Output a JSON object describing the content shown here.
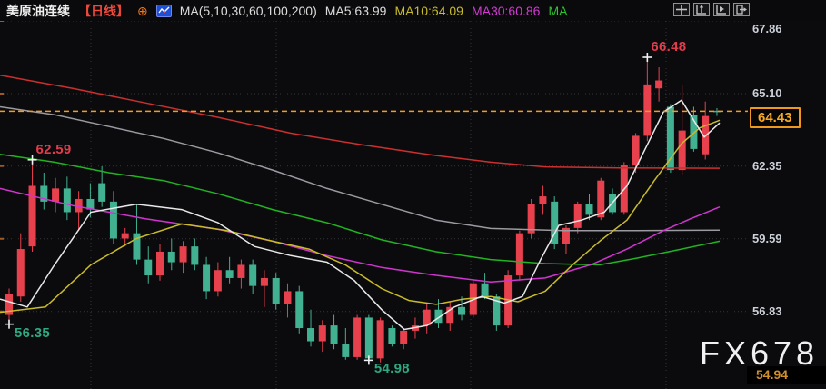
{
  "header": {
    "symbol": "美原油连续",
    "period_label": "【日线】",
    "add_icon_glyph": "⊕",
    "indicator_icon": "line-chart-icon",
    "ma_settings_label": "MA(5,10,30,60,100,200)",
    "ma5_label": "MA5:63.99",
    "ma10_label": "MA10:64.09",
    "ma30_label": "MA30:60.86",
    "ma60_label": "MA"
  },
  "toolbar": {
    "icons": [
      "crosshair",
      "axis-scale-up",
      "axis-play",
      "pane-shift-right"
    ]
  },
  "axis": {
    "ticks": [
      {
        "label": "67.86",
        "price": 67.86
      },
      {
        "label": "65.10",
        "price": 65.1
      },
      {
        "label": "62.35",
        "price": 62.35
      },
      {
        "label": "59.59",
        "price": 59.59
      },
      {
        "label": "56.83",
        "price": 56.83
      }
    ],
    "current": {
      "label": "64.43",
      "price": 64.43
    },
    "bottom_label": "54.94"
  },
  "watermark": {
    "text": "FX678"
  },
  "chart_data": {
    "type": "candlestick",
    "title": "美原油连续",
    "interval": "日线",
    "ohlc_format": [
      "open",
      "high",
      "low",
      "close"
    ],
    "up_color": "#e8414e",
    "down_color": "#41b192",
    "current_price": 64.43,
    "y_axis_ticks": [
      67.86,
      65.1,
      62.35,
      59.59,
      56.83,
      54.94
    ],
    "grid": {
      "h_prices": [
        67.86,
        65.1,
        62.35,
        59.59,
        56.83
      ],
      "v_x": [
        100,
        304,
        518,
        733
      ]
    },
    "candles": [
      [
        56.7,
        57.7,
        56.35,
        57.5
      ],
      [
        57.4,
        59.8,
        57.2,
        59.2
      ],
      [
        59.3,
        62.59,
        59.1,
        61.6
      ],
      [
        61.6,
        62.1,
        60.7,
        61.0
      ],
      [
        61.0,
        61.9,
        60.6,
        61.5
      ],
      [
        61.5,
        61.95,
        60.3,
        60.6
      ],
      [
        60.6,
        61.4,
        59.9,
        61.1
      ],
      [
        61.1,
        61.7,
        60.4,
        60.7
      ],
      [
        61.7,
        62.34,
        60.8,
        61.0
      ],
      [
        61.0,
        61.4,
        59.4,
        59.6
      ],
      [
        59.6,
        60.0,
        59.3,
        59.8
      ],
      [
        59.8,
        60.9,
        58.6,
        58.8
      ],
      [
        58.8,
        59.3,
        57.9,
        58.2
      ],
      [
        58.2,
        59.4,
        58.0,
        59.1
      ],
      [
        59.1,
        59.6,
        58.4,
        58.7
      ],
      [
        58.7,
        59.5,
        58.3,
        59.3
      ],
      [
        59.3,
        59.6,
        58.4,
        58.6
      ],
      [
        58.6,
        58.9,
        57.3,
        57.6
      ],
      [
        57.6,
        58.7,
        57.4,
        58.4
      ],
      [
        58.4,
        58.9,
        57.9,
        58.1
      ],
      [
        58.1,
        58.8,
        57.7,
        58.6
      ],
      [
        58.6,
        58.8,
        57.5,
        57.8
      ],
      [
        57.8,
        58.4,
        57.0,
        58.1
      ],
      [
        58.1,
        58.3,
        56.9,
        57.1
      ],
      [
        57.1,
        57.9,
        56.6,
        57.6
      ],
      [
        57.6,
        57.8,
        56.0,
        56.2
      ],
      [
        56.2,
        56.9,
        55.5,
        55.7
      ],
      [
        55.7,
        56.5,
        55.3,
        56.3
      ],
      [
        56.3,
        56.7,
        55.4,
        55.6
      ],
      [
        55.6,
        56.2,
        55.0,
        55.1
      ],
      [
        55.1,
        56.7,
        55.0,
        56.6
      ],
      [
        56.6,
        56.7,
        54.98,
        55.05
      ],
      [
        55.05,
        56.6,
        54.9,
        56.5
      ],
      [
        56.2,
        56.3,
        55.5,
        55.6
      ],
      [
        55.6,
        56.2,
        55.4,
        56.1
      ],
      [
        56.1,
        56.6,
        55.8,
        56.3
      ],
      [
        56.3,
        57.1,
        56.0,
        56.9
      ],
      [
        56.9,
        57.3,
        56.2,
        56.4
      ],
      [
        56.4,
        57.2,
        56.1,
        57.0
      ],
      [
        57.0,
        57.4,
        56.5,
        56.7
      ],
      [
        56.7,
        58.0,
        56.6,
        57.9
      ],
      [
        57.9,
        58.3,
        57.3,
        57.4
      ],
      [
        57.4,
        57.5,
        56.1,
        56.3
      ],
      [
        56.3,
        58.4,
        56.2,
        58.2
      ],
      [
        58.2,
        59.9,
        58.0,
        59.8
      ],
      [
        59.8,
        61.1,
        59.6,
        60.9
      ],
      [
        60.9,
        61.6,
        60.5,
        61.2
      ],
      [
        61.0,
        61.2,
        59.2,
        59.4
      ],
      [
        59.4,
        60.1,
        59.0,
        60.0
      ],
      [
        60.0,
        61.0,
        59.8,
        60.9
      ],
      [
        60.9,
        61.3,
        60.3,
        60.5
      ],
      [
        60.4,
        61.9,
        60.3,
        61.8
      ],
      [
        61.3,
        61.5,
        60.5,
        60.6
      ],
      [
        60.6,
        62.5,
        60.5,
        62.4
      ],
      [
        62.4,
        63.6,
        62.1,
        63.5
      ],
      [
        63.5,
        66.48,
        63.3,
        65.45
      ],
      [
        65.3,
        66.1,
        64.8,
        65.6
      ],
      [
        64.6,
        64.7,
        62.1,
        62.2
      ],
      [
        62.2,
        65.45,
        62.0,
        63.7
      ],
      [
        64.3,
        64.6,
        62.9,
        63.0
      ],
      [
        62.8,
        64.8,
        62.6,
        64.25
      ],
      [
        64.45,
        64.55,
        64.25,
        64.43
      ]
    ],
    "ma_lines": [
      {
        "name": "MA200",
        "color": "#cc2f2f",
        "points": [
          [
            0,
            65.8
          ],
          [
            80,
            65.3
          ],
          [
            160,
            64.75
          ],
          [
            240,
            64.2
          ],
          [
            320,
            63.6
          ],
          [
            400,
            63.15
          ],
          [
            480,
            62.75
          ],
          [
            540,
            62.5
          ],
          [
            600,
            62.32
          ],
          [
            680,
            62.28
          ],
          [
            792,
            62.27
          ]
        ]
      },
      {
        "name": "MA100",
        "color": "#9a9aa0",
        "points": [
          [
            0,
            64.6
          ],
          [
            60,
            64.3
          ],
          [
            120,
            63.85
          ],
          [
            180,
            63.4
          ],
          [
            240,
            62.85
          ],
          [
            300,
            62.2
          ],
          [
            360,
            61.5
          ],
          [
            420,
            60.9
          ],
          [
            480,
            60.3
          ],
          [
            540,
            59.98
          ],
          [
            620,
            59.9
          ],
          [
            700,
            59.9
          ],
          [
            792,
            59.92
          ]
        ]
      },
      {
        "name": "MA60",
        "color": "#22b322",
        "points": [
          [
            0,
            62.8
          ],
          [
            60,
            62.5
          ],
          [
            120,
            62.1
          ],
          [
            180,
            61.8
          ],
          [
            240,
            61.3
          ],
          [
            300,
            60.7
          ],
          [
            360,
            60.2
          ],
          [
            420,
            59.55
          ],
          [
            480,
            59.1
          ],
          [
            540,
            58.8
          ],
          [
            600,
            58.65
          ],
          [
            660,
            58.6
          ],
          [
            700,
            58.85
          ],
          [
            750,
            59.2
          ],
          [
            792,
            59.5
          ]
        ]
      },
      {
        "name": "MA30",
        "color": "#cf35cf",
        "points": [
          [
            0,
            61.5
          ],
          [
            80,
            60.85
          ],
          [
            160,
            60.35
          ],
          [
            240,
            59.95
          ],
          [
            300,
            59.5
          ],
          [
            360,
            58.95
          ],
          [
            420,
            58.5
          ],
          [
            480,
            58.2
          ],
          [
            540,
            57.95
          ],
          [
            600,
            58.1
          ],
          [
            650,
            58.6
          ],
          [
            690,
            59.2
          ],
          [
            730,
            59.9
          ],
          [
            760,
            60.35
          ],
          [
            792,
            60.8
          ]
        ]
      },
      {
        "name": "MA10",
        "color": "#c9bb2a",
        "points": [
          [
            0,
            56.8
          ],
          [
            50,
            57.0
          ],
          [
            100,
            58.6
          ],
          [
            150,
            59.6
          ],
          [
            200,
            60.15
          ],
          [
            250,
            59.9
          ],
          [
            300,
            59.5
          ],
          [
            340,
            59.2
          ],
          [
            380,
            58.6
          ],
          [
            420,
            57.7
          ],
          [
            450,
            57.25
          ],
          [
            480,
            57.1
          ],
          [
            510,
            57.3
          ],
          [
            540,
            57.4
          ],
          [
            570,
            57.2
          ],
          [
            600,
            57.6
          ],
          [
            630,
            58.6
          ],
          [
            660,
            59.5
          ],
          [
            690,
            60.3
          ],
          [
            720,
            61.8
          ],
          [
            750,
            63.2
          ],
          [
            770,
            63.8
          ],
          [
            792,
            64.09
          ]
        ]
      },
      {
        "name": "MA5",
        "color": "#e8e8e8",
        "points": [
          [
            0,
            57.3
          ],
          [
            30,
            57.0
          ],
          [
            60,
            58.6
          ],
          [
            100,
            60.6
          ],
          [
            150,
            60.9
          ],
          [
            200,
            60.7
          ],
          [
            240,
            60.2
          ],
          [
            280,
            59.3
          ],
          [
            320,
            58.95
          ],
          [
            360,
            58.7
          ],
          [
            390,
            58.0
          ],
          [
            420,
            56.9
          ],
          [
            445,
            56.15
          ],
          [
            470,
            56.3
          ],
          [
            500,
            57.0
          ],
          [
            530,
            57.4
          ],
          [
            555,
            57.15
          ],
          [
            575,
            57.4
          ],
          [
            595,
            58.8
          ],
          [
            615,
            60.1
          ],
          [
            640,
            60.3
          ],
          [
            665,
            60.6
          ],
          [
            690,
            61.6
          ],
          [
            710,
            63.0
          ],
          [
            730,
            64.4
          ],
          [
            750,
            64.85
          ],
          [
            765,
            64.0
          ],
          [
            775,
            63.45
          ],
          [
            792,
            63.99
          ]
        ]
      }
    ],
    "annotations": [
      {
        "text": "66.48",
        "type": "high",
        "price": 66.48,
        "index": 55,
        "color": "#e23b4c",
        "marker": "cross"
      },
      {
        "text": "62.59",
        "type": "high",
        "price": 62.59,
        "index": 2,
        "color": "#e23b4c",
        "marker": "cross"
      },
      {
        "text": "56.35",
        "type": "low",
        "price": 56.35,
        "index": 0,
        "color": "#2ea881",
        "marker": "cross"
      },
      {
        "text": "54.98",
        "type": "low",
        "price": 54.98,
        "index": 31,
        "color": "#2ea881",
        "marker": "cross"
      }
    ]
  }
}
